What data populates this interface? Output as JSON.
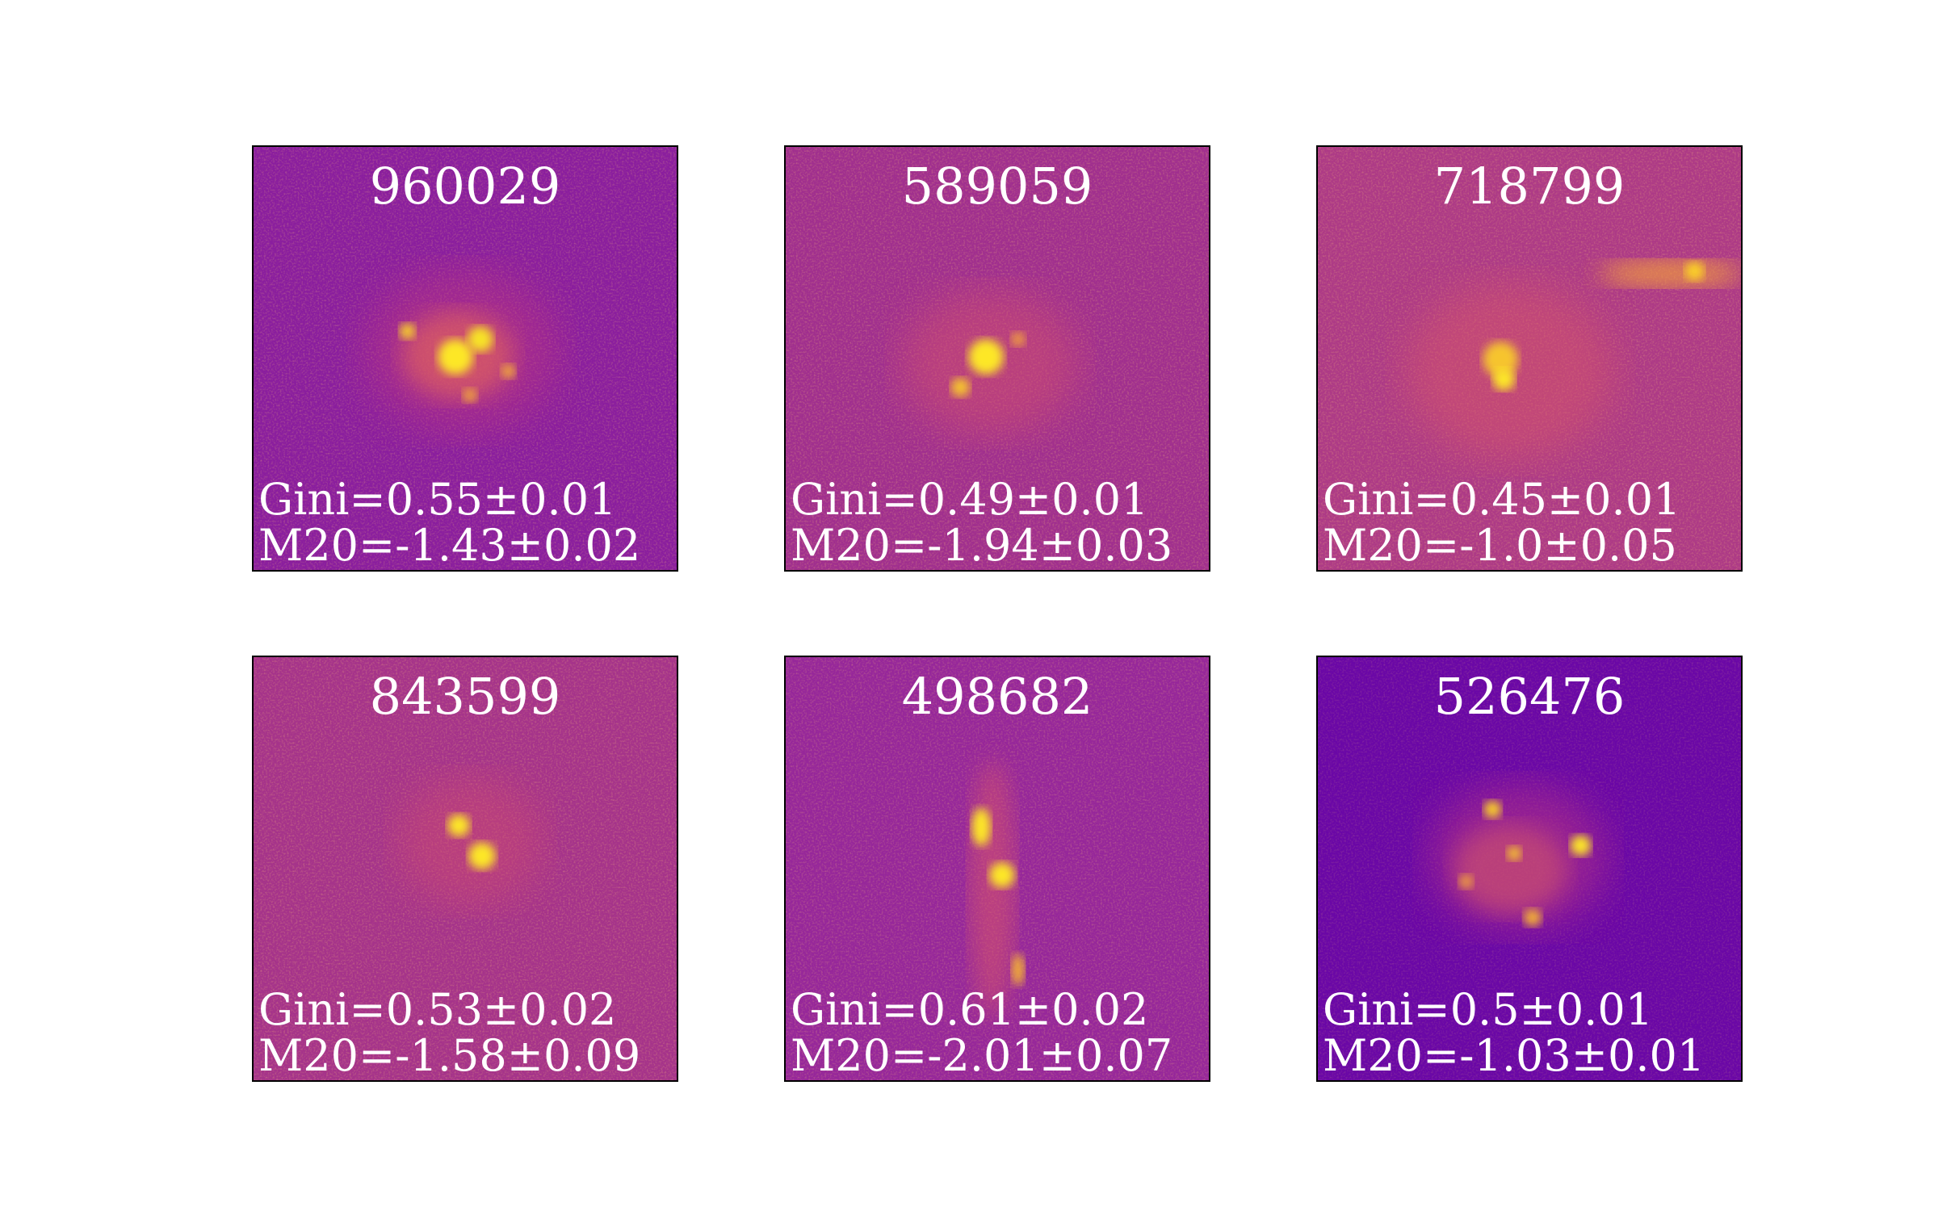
{
  "colors": {
    "background": "#ffffff",
    "border": "#000000",
    "text": "#ffffff",
    "colormap": "plasma"
  },
  "panels": [
    {
      "id": "960029",
      "gini": "Gini=0.55±0.01",
      "m20": "M20=-1.43±0.02"
    },
    {
      "id": "589059",
      "gini": "Gini=0.49±0.01",
      "m20": "M20=-1.94±0.03"
    },
    {
      "id": "718799",
      "gini": "Gini=0.45±0.01",
      "m20": "M20=-1.0±0.05"
    },
    {
      "id": "843599",
      "gini": "Gini=0.53±0.02",
      "m20": "M20=-1.58±0.09"
    },
    {
      "id": "498682",
      "gini": "Gini=0.61±0.02",
      "m20": "M20=-2.01±0.07"
    },
    {
      "id": "526476",
      "gini": "Gini=0.5±0.01",
      "m20": "M20=-1.03±0.01"
    }
  ]
}
